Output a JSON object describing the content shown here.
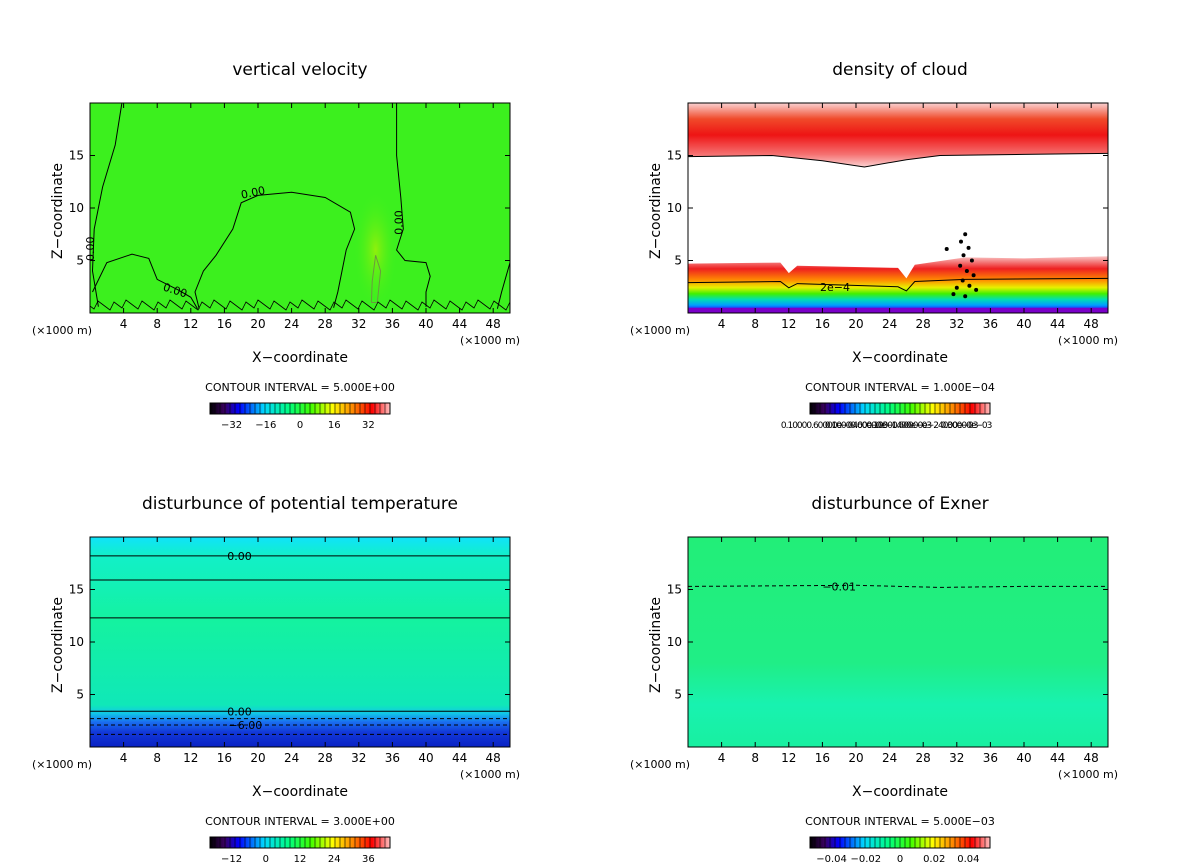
{
  "colors": {
    "vv_fill": "#3cf01e",
    "exner_fill": "#22ee7e",
    "pt_top": "#10e6f8",
    "pt_mid": "#14f2a2",
    "pt_low": "#1f6ff0",
    "pt_bottom": "#1230d8",
    "cloud_red": "#f21818",
    "cloud_pink": "#f7b3b3",
    "contour": "#000000"
  },
  "chart_data": [
    {
      "id": "vv",
      "type": "heatmap",
      "title": "vertical velocity",
      "xlabel": "X−coordinate",
      "ylabel": "Z−coordinate",
      "x_unit_left": "(×1000 m)",
      "x_unit_right": "(×1000 m)",
      "xlim": [
        0,
        50
      ],
      "ylim": [
        0,
        20
      ],
      "x_ticks": [
        4,
        8,
        12,
        16,
        20,
        24,
        28,
        32,
        36,
        40,
        44,
        48
      ],
      "y_ticks": [
        5,
        10,
        15
      ],
      "contour_interval": "CONTOUR INTERVAL = 5.000E+00",
      "colorbar_ticks": [
        "−32",
        "−16",
        "0",
        "16",
        "32"
      ],
      "contour_labels": [
        {
          "text": "0.00",
          "x": 19.5,
          "y": 11.5
        },
        {
          "text": "0.00",
          "x": 0.5,
          "y": 6.5
        },
        {
          "text": "0.00",
          "x": 10.0,
          "y": 2.2
        },
        {
          "text": "0.00",
          "x": 37.2,
          "y": 9.0
        }
      ]
    },
    {
      "id": "cloud",
      "type": "heatmap",
      "title": "density of cloud",
      "xlabel": "X−coordinate",
      "ylabel": "Z−coordinate",
      "x_unit_left": "(×1000 m)",
      "x_unit_right": "(×1000 m)",
      "xlim": [
        0,
        50
      ],
      "ylim": [
        0,
        20
      ],
      "x_ticks": [
        4,
        8,
        12,
        16,
        20,
        24,
        28,
        32,
        36,
        40,
        44,
        48
      ],
      "y_ticks": [
        5,
        10,
        15
      ],
      "contour_interval": "CONTOUR INTERVAL = 1.000E−04",
      "colorbar_ticks": [
        "0.10000.60000e−0400e−03",
        "0.10000.60000e−1400e−03",
        "0.10000.60000e−24000e−03",
        "0.30000e−03"
      ],
      "contour_labels": [
        {
          "text": "2e−4",
          "x": 17.5,
          "y": 2.5
        }
      ]
    },
    {
      "id": "pt",
      "type": "heatmap",
      "title": "disturbunce of potential temperature",
      "xlabel": "X−coordinate",
      "ylabel": "Z−coordinate",
      "x_unit_left": "(×1000 m)",
      "x_unit_right": "(×1000 m)",
      "xlim": [
        0,
        50
      ],
      "ylim": [
        0,
        20
      ],
      "x_ticks": [
        4,
        8,
        12,
        16,
        20,
        24,
        28,
        32,
        36,
        40,
        44,
        48
      ],
      "y_ticks": [
        5,
        10,
        15
      ],
      "contour_interval": "CONTOUR INTERVAL = 3.000E+00",
      "colorbar_ticks": [
        "−12",
        "0",
        "12",
        "24",
        "36"
      ],
      "contour_labels": [
        {
          "text": "0.00",
          "x": 17.8,
          "y": 18.2
        },
        {
          "text": "0.00",
          "x": 17.8,
          "y": 3.4
        },
        {
          "text": "−6.00",
          "x": 18.5,
          "y": 2.1
        }
      ]
    },
    {
      "id": "exner",
      "type": "heatmap",
      "title": "disturbunce of Exner",
      "xlabel": "X−coordinate",
      "ylabel": "Z−coordinate",
      "x_unit_left": "(×1000 m)",
      "x_unit_right": "(×1000 m)",
      "xlim": [
        0,
        50
      ],
      "ylim": [
        0,
        20
      ],
      "x_ticks": [
        4,
        8,
        12,
        16,
        20,
        24,
        28,
        32,
        36,
        40,
        44,
        48
      ],
      "y_ticks": [
        5,
        10,
        15
      ],
      "contour_interval": "CONTOUR INTERVAL = 5.000E−03",
      "colorbar_ticks": [
        "−0.04",
        "−0.02",
        "0",
        "0.02",
        "0.04"
      ],
      "contour_labels": [
        {
          "text": "−0.01",
          "x": 18.0,
          "y": 15.3
        }
      ]
    }
  ]
}
